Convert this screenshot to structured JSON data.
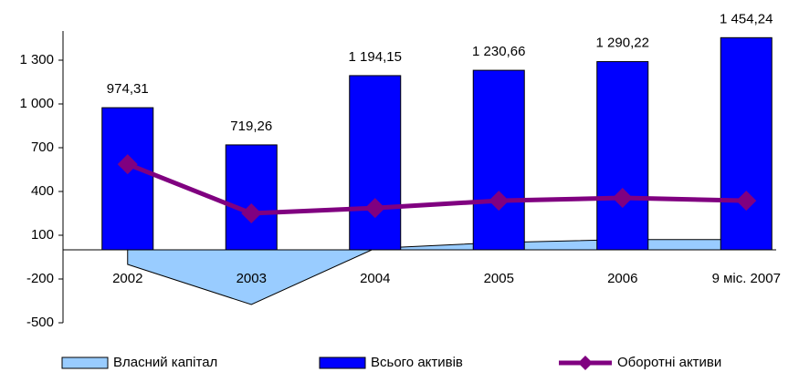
{
  "chart_data": {
    "type": "bar",
    "categories": [
      "2002",
      "2003",
      "2004",
      "2005",
      "2006",
      "9 міс. 2007"
    ],
    "series": [
      {
        "name": "Власний капітал",
        "type": "area",
        "color": "#99ccff",
        "values": [
          -100,
          -375,
          10,
          50,
          70,
          70
        ]
      },
      {
        "name": "Всього активів",
        "type": "bar",
        "color": "#0000ff",
        "values": [
          974.31,
          719.26,
          1194.15,
          1230.66,
          1290.22,
          1454.24
        ],
        "value_labels": [
          "974,31",
          "719,26",
          "1 194,15",
          "1 230,66",
          "1 290,22",
          "1 454,24"
        ]
      },
      {
        "name": "Оборотні активи",
        "type": "line",
        "color": "#800080",
        "values": [
          587,
          250,
          287,
          337,
          356,
          337
        ]
      }
    ],
    "ylim": [
      -500,
      1500
    ],
    "yticks": [
      -500,
      -200,
      100,
      400,
      700,
      {
        "value": 1000,
        "label": "1 000"
      },
      {
        "value": 1300,
        "label": "1 300"
      }
    ],
    "legend": "bottom"
  }
}
